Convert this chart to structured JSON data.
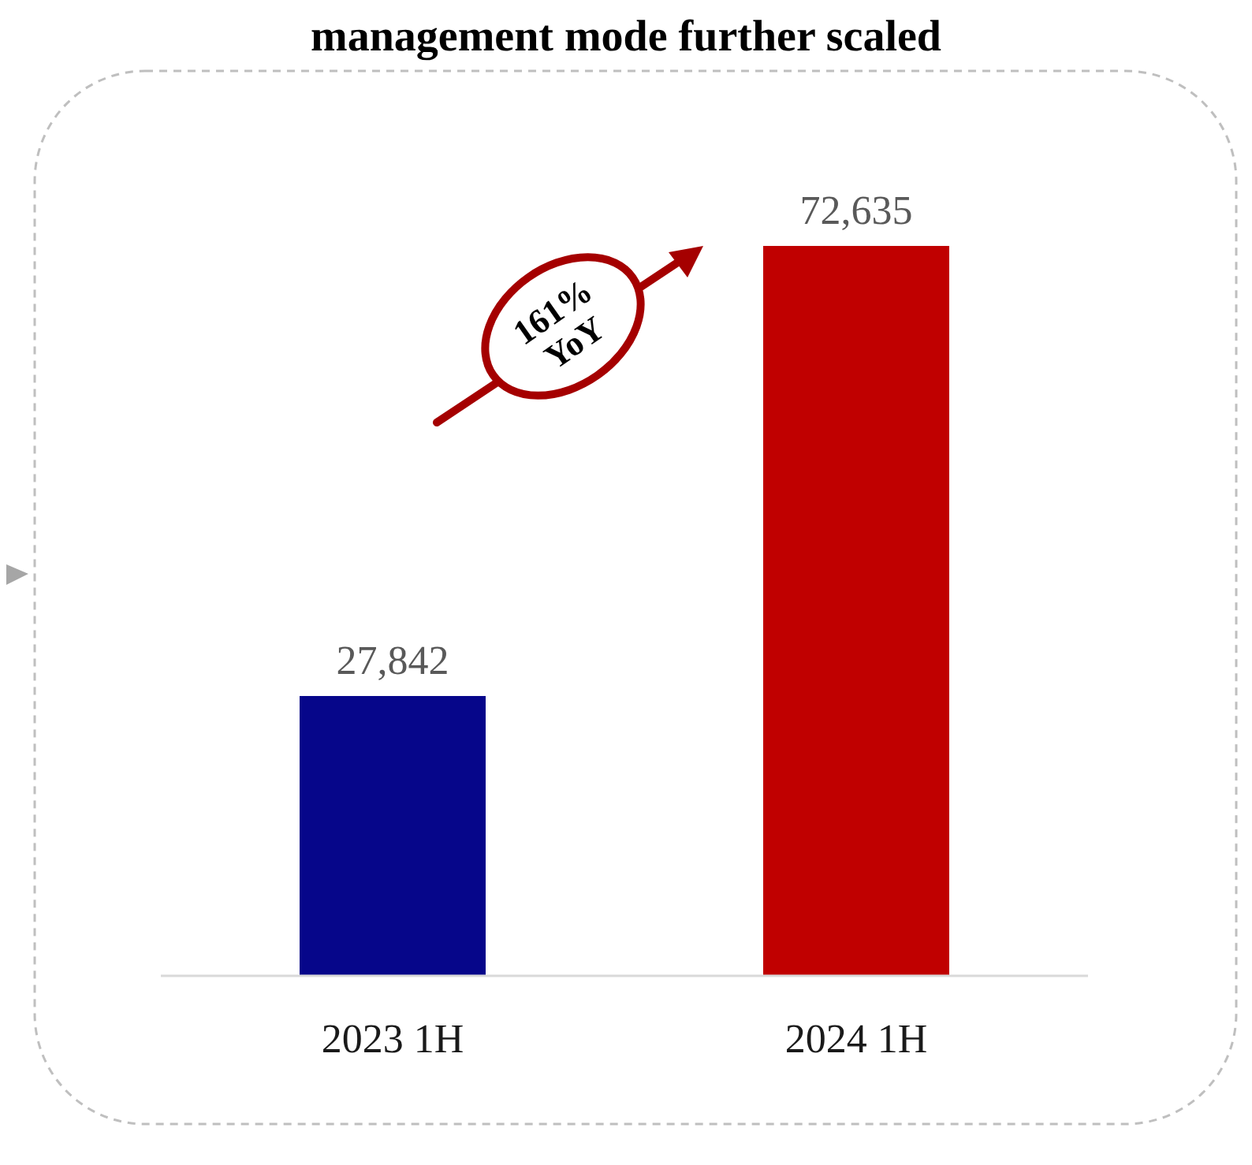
{
  "chart_data": {
    "type": "bar",
    "title": "management mode further scaled",
    "categories": [
      "2023 1H",
      "2024 1H"
    ],
    "values": [
      27842,
      72635
    ],
    "colors": [
      "#06068a",
      "#c00000"
    ],
    "value_labels": [
      "27,842",
      "72,635"
    ],
    "annotations": [
      "161% YoY"
    ]
  }
}
